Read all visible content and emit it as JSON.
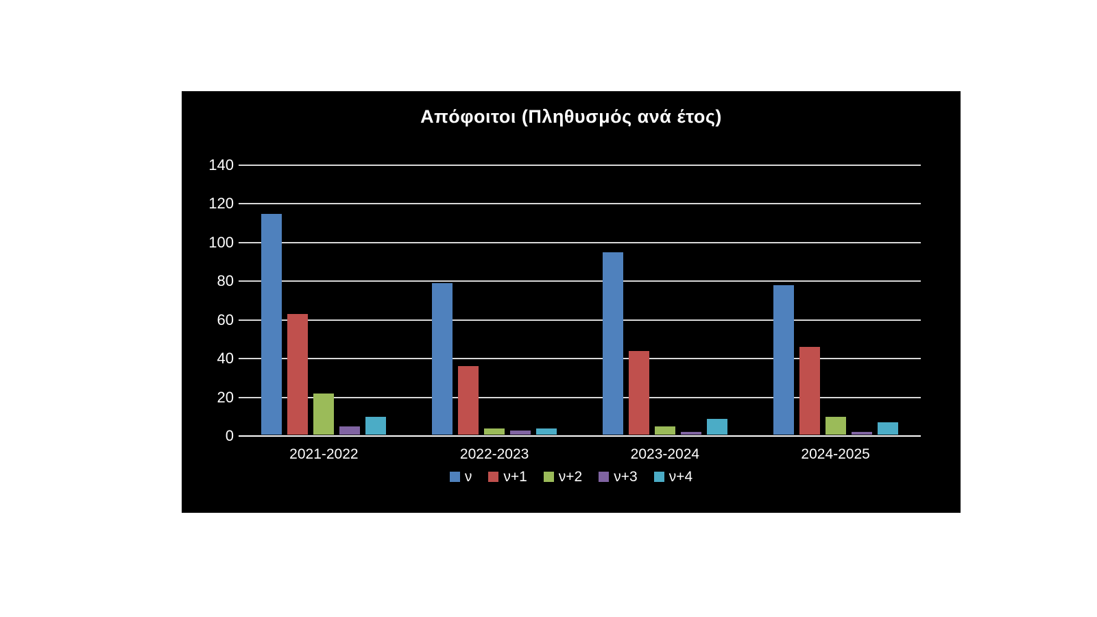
{
  "page": {
    "background_color": "#ffffff"
  },
  "chart": {
    "panel_background": "#000000",
    "text_color": "#ffffff",
    "gridline_color": "#d9d9d9",
    "axis_line_color": "#ffffff"
  },
  "chart_data": {
    "type": "bar",
    "title": "Απόφοιτοι (Πληθυσμός ανά έτος)",
    "categories": [
      "2021-2022",
      "2022-2023",
      "2023-2024",
      "2024-2025"
    ],
    "series": [
      {
        "name": "ν",
        "color": "#4F81BD",
        "values": [
          115,
          79,
          95,
          78
        ]
      },
      {
        "name": "ν+1",
        "color": "#C0504D",
        "values": [
          63,
          36,
          44,
          46
        ]
      },
      {
        "name": "ν+2",
        "color": "#9BBB59",
        "values": [
          22,
          4,
          5,
          10
        ]
      },
      {
        "name": "ν+3",
        "color": "#8064A2",
        "values": [
          5,
          3,
          2,
          2
        ]
      },
      {
        "name": "ν+4",
        "color": "#4BACC6",
        "values": [
          10,
          4,
          9,
          7
        ]
      }
    ],
    "xlabel": "",
    "ylabel": "",
    "ylim": [
      0,
      140
    ],
    "yticks": [
      0,
      20,
      40,
      60,
      80,
      100,
      120,
      140
    ],
    "grid": true,
    "legend_position": "bottom"
  }
}
